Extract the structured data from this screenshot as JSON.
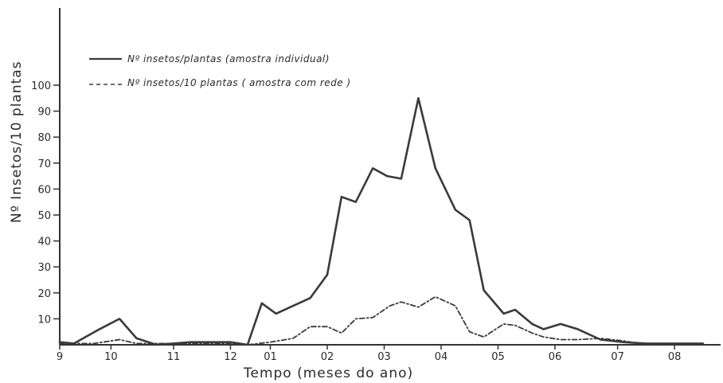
{
  "chart_data": {
    "type": "line",
    "title": "",
    "xlabel": "Tempo  (meses do ano)",
    "ylabel": "Nº Insetos/10 plantas",
    "ylim": [
      0,
      100
    ],
    "yticks": [
      10,
      20,
      30,
      40,
      50,
      60,
      70,
      80,
      90,
      100
    ],
    "x_tick_labels": [
      {
        "label": "9",
        "x": 9.0
      },
      {
        "label": "10",
        "x": 9.9
      },
      {
        "label": "11",
        "x": 11.0
      },
      {
        "label": "12",
        "x": 12.0
      },
      {
        "label": "01",
        "x": 12.7
      },
      {
        "label": "02",
        "x": 13.7
      },
      {
        "label": "03",
        "x": 14.7
      },
      {
        "label": "04",
        "x": 15.7
      },
      {
        "label": "05",
        "x": 16.7
      },
      {
        "label": "06",
        "x": 17.7
      },
      {
        "label": "07",
        "x": 18.8
      },
      {
        "label": "08",
        "x": 19.8
      }
    ],
    "xlim": [
      9.0,
      20.4
    ],
    "grid": false,
    "legend_position": "top-left",
    "series": [
      {
        "name": "Nº insetos/plantas (amostra individual)",
        "style": "solid",
        "color": "#3a3a3a",
        "points": [
          [
            9.0,
            1
          ],
          [
            9.25,
            0.5
          ],
          [
            9.7,
            6
          ],
          [
            10.05,
            10
          ],
          [
            10.35,
            2.5
          ],
          [
            10.7,
            0
          ],
          [
            11.3,
            1
          ],
          [
            12.0,
            1
          ],
          [
            12.3,
            0
          ],
          [
            12.55,
            16
          ],
          [
            12.8,
            12
          ],
          [
            13.1,
            15
          ],
          [
            13.4,
            18
          ],
          [
            13.7,
            27
          ],
          [
            13.95,
            57
          ],
          [
            14.2,
            55
          ],
          [
            14.5,
            68
          ],
          [
            14.75,
            65
          ],
          [
            15.0,
            64
          ],
          [
            15.3,
            95
          ],
          [
            15.6,
            68
          ],
          [
            15.95,
            52
          ],
          [
            16.2,
            48
          ],
          [
            16.45,
            21
          ],
          [
            16.8,
            12
          ],
          [
            17.0,
            13.5
          ],
          [
            17.3,
            8
          ],
          [
            17.5,
            6
          ],
          [
            17.8,
            8
          ],
          [
            18.1,
            6
          ],
          [
            18.5,
            2
          ],
          [
            18.9,
            1
          ],
          [
            19.3,
            0.5
          ],
          [
            19.8,
            0.5
          ],
          [
            20.3,
            0.5
          ]
        ]
      },
      {
        "name": "Nº insetos/10 plantas ( amostra com rede )",
        "style": "dashed",
        "color": "#3a3a3a",
        "points": [
          [
            9.0,
            0.5
          ],
          [
            9.6,
            0.5
          ],
          [
            10.05,
            2
          ],
          [
            10.35,
            0.5
          ],
          [
            11.3,
            0.5
          ],
          [
            12.0,
            0.5
          ],
          [
            12.3,
            0
          ],
          [
            12.7,
            1
          ],
          [
            13.1,
            2.5
          ],
          [
            13.4,
            7
          ],
          [
            13.7,
            7
          ],
          [
            13.95,
            4.5
          ],
          [
            14.2,
            10
          ],
          [
            14.5,
            10.5
          ],
          [
            14.8,
            15
          ],
          [
            15.0,
            16.5
          ],
          [
            15.3,
            14.5
          ],
          [
            15.6,
            18.5
          ],
          [
            15.95,
            15
          ],
          [
            16.2,
            5
          ],
          [
            16.45,
            3
          ],
          [
            16.8,
            8
          ],
          [
            17.0,
            7.5
          ],
          [
            17.3,
            4.5
          ],
          [
            17.5,
            3
          ],
          [
            17.8,
            2
          ],
          [
            18.1,
            2
          ],
          [
            18.5,
            2.5
          ],
          [
            18.9,
            1.5
          ],
          [
            19.3,
            0
          ],
          [
            19.7,
            0.5
          ],
          [
            20.3,
            0.5
          ]
        ]
      }
    ]
  }
}
